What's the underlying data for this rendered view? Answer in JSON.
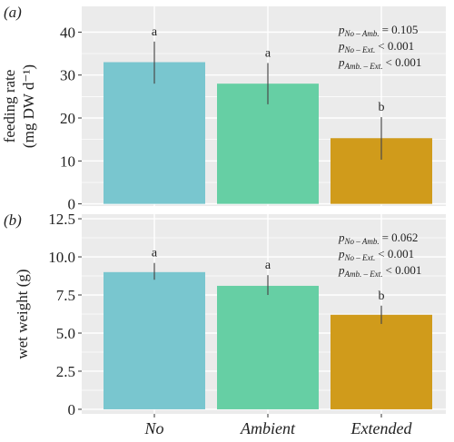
{
  "colors": {
    "panel_bg": "#ebebeb",
    "grid": "#ffffff",
    "No": "#79c6cf",
    "Ambient": "#66cfa4",
    "Extended": "#d09b1b",
    "error_bar": "#4a4a4a",
    "text": "#222222"
  },
  "chart_data": [
    {
      "panel_label": "(a)",
      "type": "bar",
      "categories": [
        "No",
        "Ambient",
        "Extended"
      ],
      "values": [
        33,
        28,
        15.3
      ],
      "error_low": [
        28,
        23.2,
        10.3
      ],
      "error_high": [
        37.8,
        32.8,
        20.2
      ],
      "letters": [
        "a",
        "a",
        "b"
      ],
      "ylabel_line1": "feeding rate",
      "ylabel_line2": "(mg DW d⁻¹)",
      "ylim": [
        -0.5,
        46
      ],
      "yticks": [
        0,
        10,
        20,
        30,
        40
      ],
      "ytick_labels": [
        "0",
        "10",
        "20",
        "30",
        "40"
      ],
      "grid": true,
      "pvalues": [
        {
          "p": "p",
          "sub": "No – Amb.",
          "rel": "= 0.105"
        },
        {
          "p": "p",
          "sub": "No – Ext.",
          "rel": "< 0.001"
        },
        {
          "p": "p",
          "sub": "Amb. – Ext.",
          "rel": "< 0.001"
        }
      ]
    },
    {
      "panel_label": "(b)",
      "type": "bar",
      "categories": [
        "No",
        "Ambient",
        "Extended"
      ],
      "values": [
        9.0,
        8.1,
        6.2
      ],
      "error_low": [
        8.5,
        7.5,
        5.6
      ],
      "error_high": [
        9.6,
        8.8,
        6.8
      ],
      "letters": [
        "a",
        "a",
        "b"
      ],
      "ylabel_line1": "wet weight (g)",
      "ylabel_line2": "",
      "ylim": [
        -0.3,
        12.8
      ],
      "yticks": [
        0,
        2.5,
        5,
        7.5,
        10,
        12.5
      ],
      "ytick_labels": [
        "0",
        "2.5",
        "5.0",
        "7.5",
        "10.0",
        "12.5"
      ],
      "grid": true,
      "pvalues": [
        {
          "p": "p",
          "sub": "No – Amb.",
          "rel": "= 0.062"
        },
        {
          "p": "p",
          "sub": "No – Ext.",
          "rel": "< 0.001"
        },
        {
          "p": "p",
          "sub": "Amb. – Ext.",
          "rel": "< 0.001"
        }
      ]
    }
  ],
  "x_tick_labels": [
    "No",
    "Ambient",
    "Extended"
  ]
}
